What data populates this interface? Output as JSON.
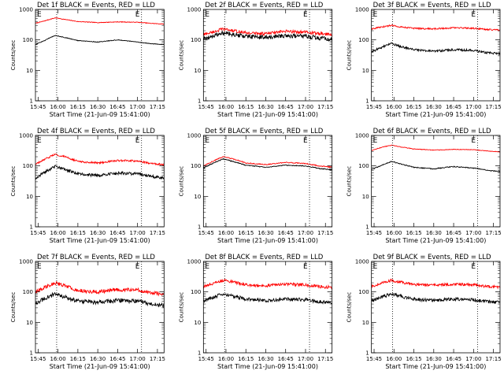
{
  "colors": {
    "events": "#000000",
    "lld": "#ff0000",
    "axes": "#000000",
    "background": "#ffffff"
  },
  "x_tick_labels": [
    "15:45",
    "16:00",
    "16:15",
    "16:30",
    "16:45",
    "17:00",
    "17:15"
  ],
  "x_ticks_minutes": [
    0,
    15,
    30,
    45,
    60,
    75,
    90
  ],
  "y_tick_labels": [
    "1",
    "10",
    "100",
    "1000"
  ],
  "y_ticks": [
    1,
    10,
    100,
    1000
  ],
  "xlabel": "Start Time (21-Jun-09 15:41:00)",
  "ylabel": "Counts/sec",
  "corner_labels": {
    "left": "E",
    "right": "E"
  },
  "chart_data": [
    {
      "type": "line",
      "title": "Det 1f BLACK = Events, RED = LLD",
      "xlabel": "Start Time (21-Jun-09 15:41:00)",
      "ylabel": "Counts/sec",
      "x_unit": "minutes after 15:45",
      "xlim": [
        "15:43",
        "17:20"
      ],
      "ylim": [
        1,
        1000
      ],
      "yscale": "log",
      "vlines": [
        "15:59",
        "17:03"
      ],
      "series": [
        {
          "color": "#ff0000",
          "x": [
            "15:43",
            "15:50",
            "15:58",
            "16:05",
            "16:15",
            "16:30",
            "16:45",
            "17:00",
            "17:10",
            "17:20"
          ],
          "values": [
            350,
            420,
            530,
            470,
            400,
            370,
            390,
            380,
            350,
            330
          ],
          "noise": 0.01
        },
        {
          "color": "#000000",
          "x": [
            "15:43",
            "15:50",
            "15:58",
            "16:05",
            "16:15",
            "16:30",
            "16:45",
            "17:00",
            "17:10",
            "17:20"
          ],
          "values": [
            70,
            95,
            140,
            120,
            95,
            85,
            100,
            85,
            75,
            70
          ],
          "noise": 0.01
        }
      ]
    },
    {
      "type": "line",
      "title": "Det 2f BLACK = Events, RED = LLD",
      "xlabel": "Start Time (21-Jun-09 15:41:00)",
      "ylabel": "Counts/sec",
      "xlim": [
        "15:43",
        "17:20"
      ],
      "ylim": [
        1,
        1000
      ],
      "yscale": "log",
      "vlines": [
        "15:59",
        "17:03"
      ],
      "series": [
        {
          "color": "#ff0000",
          "x": [
            "15:43",
            "15:50",
            "15:58",
            "16:05",
            "16:15",
            "16:30",
            "16:45",
            "17:00",
            "17:10",
            "17:20"
          ],
          "values": [
            150,
            180,
            230,
            200,
            170,
            160,
            190,
            180,
            160,
            150
          ],
          "noise": 0.05
        },
        {
          "color": "#000000",
          "x": [
            "15:43",
            "15:50",
            "15:58",
            "16:05",
            "16:15",
            "16:30",
            "16:45",
            "17:00",
            "17:10",
            "17:20"
          ],
          "values": [
            110,
            130,
            170,
            150,
            130,
            120,
            140,
            130,
            115,
            105
          ],
          "noise": 0.07
        }
      ]
    },
    {
      "type": "line",
      "title": "Det 3f BLACK = Events, RED = LLD",
      "xlabel": "Start Time (21-Jun-09 15:41:00)",
      "ylabel": "Counts/sec",
      "xlim": [
        "15:43",
        "17:20"
      ],
      "ylim": [
        1,
        1000
      ],
      "yscale": "log",
      "vlines": [
        "15:59",
        "17:03"
      ],
      "series": [
        {
          "color": "#ff0000",
          "x": [
            "15:43",
            "15:50",
            "15:58",
            "16:05",
            "16:15",
            "16:30",
            "16:45",
            "17:00",
            "17:10",
            "17:20"
          ],
          "values": [
            230,
            260,
            300,
            270,
            240,
            230,
            250,
            240,
            220,
            210
          ],
          "noise": 0.025
        },
        {
          "color": "#000000",
          "x": [
            "15:43",
            "15:50",
            "15:58",
            "16:05",
            "16:15",
            "16:30",
            "16:45",
            "17:00",
            "17:10",
            "17:20"
          ],
          "values": [
            40,
            55,
            75,
            60,
            48,
            42,
            48,
            45,
            38,
            35
          ],
          "noise": 0.035
        }
      ]
    },
    {
      "type": "line",
      "title": "Det 4f BLACK = Events, RED = LLD",
      "xlabel": "Start Time (21-Jun-09 15:41:00)",
      "ylabel": "Counts/sec",
      "xlim": [
        "15:43",
        "17:20"
      ],
      "ylim": [
        1,
        1000
      ],
      "yscale": "log",
      "vlines": [
        "15:59",
        "17:03"
      ],
      "series": [
        {
          "color": "#ff0000",
          "x": [
            "15:43",
            "15:50",
            "15:58",
            "16:05",
            "16:15",
            "16:30",
            "16:45",
            "17:00",
            "17:10",
            "17:20"
          ],
          "values": [
            110,
            160,
            240,
            200,
            140,
            125,
            150,
            145,
            120,
            110
          ],
          "noise": 0.03
        },
        {
          "color": "#000000",
          "x": [
            "15:43",
            "15:50",
            "15:58",
            "16:05",
            "16:15",
            "16:30",
            "16:45",
            "17:00",
            "17:10",
            "17:20"
          ],
          "values": [
            40,
            60,
            95,
            75,
            55,
            48,
            58,
            55,
            45,
            40
          ],
          "noise": 0.05
        }
      ]
    },
    {
      "type": "line",
      "title": "Det 5f BLACK = Events, RED = LLD",
      "xlabel": "Start Time (21-Jun-09 15:41:00)",
      "ylabel": "Counts/sec",
      "xlim": [
        "15:43",
        "17:20"
      ],
      "ylim": [
        1,
        1000
      ],
      "yscale": "log",
      "vlines": [
        "15:59",
        "17:03"
      ],
      "series": [
        {
          "color": "#ff0000",
          "x": [
            "15:43",
            "15:50",
            "15:58",
            "16:05",
            "16:15",
            "16:30",
            "16:45",
            "17:00",
            "17:10",
            "17:20"
          ],
          "values": [
            100,
            140,
            200,
            170,
            125,
            110,
            130,
            120,
            100,
            90
          ],
          "noise": 0.015
        },
        {
          "color": "#000000",
          "x": [
            "15:43",
            "15:50",
            "15:58",
            "16:05",
            "16:15",
            "16:30",
            "16:45",
            "17:00",
            "17:10",
            "17:20"
          ],
          "values": [
            85,
            120,
            170,
            140,
            105,
            90,
            105,
            100,
            82,
            75
          ],
          "noise": 0.015
        }
      ]
    },
    {
      "type": "line",
      "title": "Det 6f BLACK = Events, RED = LLD",
      "xlabel": "Start Time (21-Jun-09 15:41:00)",
      "ylabel": "Counts/sec",
      "xlim": [
        "15:43",
        "17:20"
      ],
      "ylim": [
        1,
        1000
      ],
      "yscale": "log",
      "vlines": [
        "15:59",
        "17:03"
      ],
      "series": [
        {
          "color": "#ff0000",
          "x": [
            "15:43",
            "15:50",
            "15:58",
            "16:05",
            "16:15",
            "16:30",
            "16:45",
            "17:00",
            "17:10",
            "17:20"
          ],
          "values": [
            320,
            400,
            480,
            420,
            360,
            330,
            350,
            340,
            310,
            290
          ],
          "noise": 0.01
        },
        {
          "color": "#000000",
          "x": [
            "15:43",
            "15:50",
            "15:58",
            "16:05",
            "16:15",
            "16:30",
            "16:45",
            "17:00",
            "17:10",
            "17:20"
          ],
          "values": [
            75,
            100,
            140,
            115,
            90,
            80,
            95,
            85,
            72,
            65
          ],
          "noise": 0.015
        }
      ]
    },
    {
      "type": "line",
      "title": "Det 7f BLACK = Events, RED = LLD",
      "xlabel": "Start Time (21-Jun-09 15:41:00)",
      "ylabel": "Counts/sec",
      "xlim": [
        "15:43",
        "17:20"
      ],
      "ylim": [
        1,
        1000
      ],
      "yscale": "log",
      "vlines": [
        "15:59",
        "17:03"
      ],
      "series": [
        {
          "color": "#ff0000",
          "x": [
            "15:43",
            "15:50",
            "15:58",
            "16:05",
            "16:15",
            "16:30",
            "16:45",
            "17:00",
            "17:10",
            "17:20"
          ],
          "values": [
            100,
            140,
            200,
            160,
            110,
            100,
            120,
            115,
            95,
            85
          ],
          "noise": 0.06
        },
        {
          "color": "#000000",
          "x": [
            "15:43",
            "15:50",
            "15:58",
            "16:05",
            "16:15",
            "16:30",
            "16:45",
            "17:00",
            "17:10",
            "17:20"
          ],
          "values": [
            40,
            60,
            85,
            68,
            50,
            45,
            52,
            50,
            40,
            36
          ],
          "noise": 0.07
        }
      ]
    },
    {
      "type": "line",
      "title": "Det 8f BLACK = Events, RED = LLD",
      "xlabel": "Start Time (21-Jun-09 15:41:00)",
      "ylabel": "Counts/sec",
      "xlim": [
        "15:43",
        "17:20"
      ],
      "ylim": [
        1,
        1000
      ],
      "yscale": "log",
      "vlines": [
        "15:59",
        "17:03"
      ],
      "series": [
        {
          "color": "#ff0000",
          "x": [
            "15:43",
            "15:50",
            "15:58",
            "16:05",
            "16:15",
            "16:30",
            "16:45",
            "17:00",
            "17:10",
            "17:20"
          ],
          "values": [
            150,
            190,
            240,
            210,
            170,
            160,
            180,
            170,
            150,
            140
          ],
          "noise": 0.05
        },
        {
          "color": "#000000",
          "x": [
            "15:43",
            "15:50",
            "15:58",
            "16:05",
            "16:15",
            "16:30",
            "16:45",
            "17:00",
            "17:10",
            "17:20"
          ],
          "values": [
            50,
            65,
            85,
            72,
            58,
            52,
            58,
            55,
            48,
            44
          ],
          "noise": 0.055
        }
      ]
    },
    {
      "type": "line",
      "title": "Det 9f BLACK = Events, RED = LLD",
      "xlabel": "Start Time (21-Jun-09 15:41:00)",
      "ylabel": "Counts/sec",
      "xlim": [
        "15:43",
        "17:20"
      ],
      "ylim": [
        1,
        1000
      ],
      "yscale": "log",
      "vlines": [
        "15:59",
        "17:03"
      ],
      "series": [
        {
          "color": "#ff0000",
          "x": [
            "15:43",
            "15:50",
            "15:58",
            "16:05",
            "16:15",
            "16:30",
            "16:45",
            "17:00",
            "17:10",
            "17:20"
          ],
          "values": [
            150,
            190,
            240,
            210,
            175,
            165,
            180,
            170,
            150,
            140
          ],
          "noise": 0.045
        },
        {
          "color": "#000000",
          "x": [
            "15:43",
            "15:50",
            "15:58",
            "16:05",
            "16:15",
            "16:30",
            "16:45",
            "17:00",
            "17:10",
            "17:20"
          ],
          "values": [
            50,
            65,
            85,
            72,
            58,
            52,
            58,
            55,
            48,
            44
          ],
          "noise": 0.055
        }
      ]
    }
  ]
}
